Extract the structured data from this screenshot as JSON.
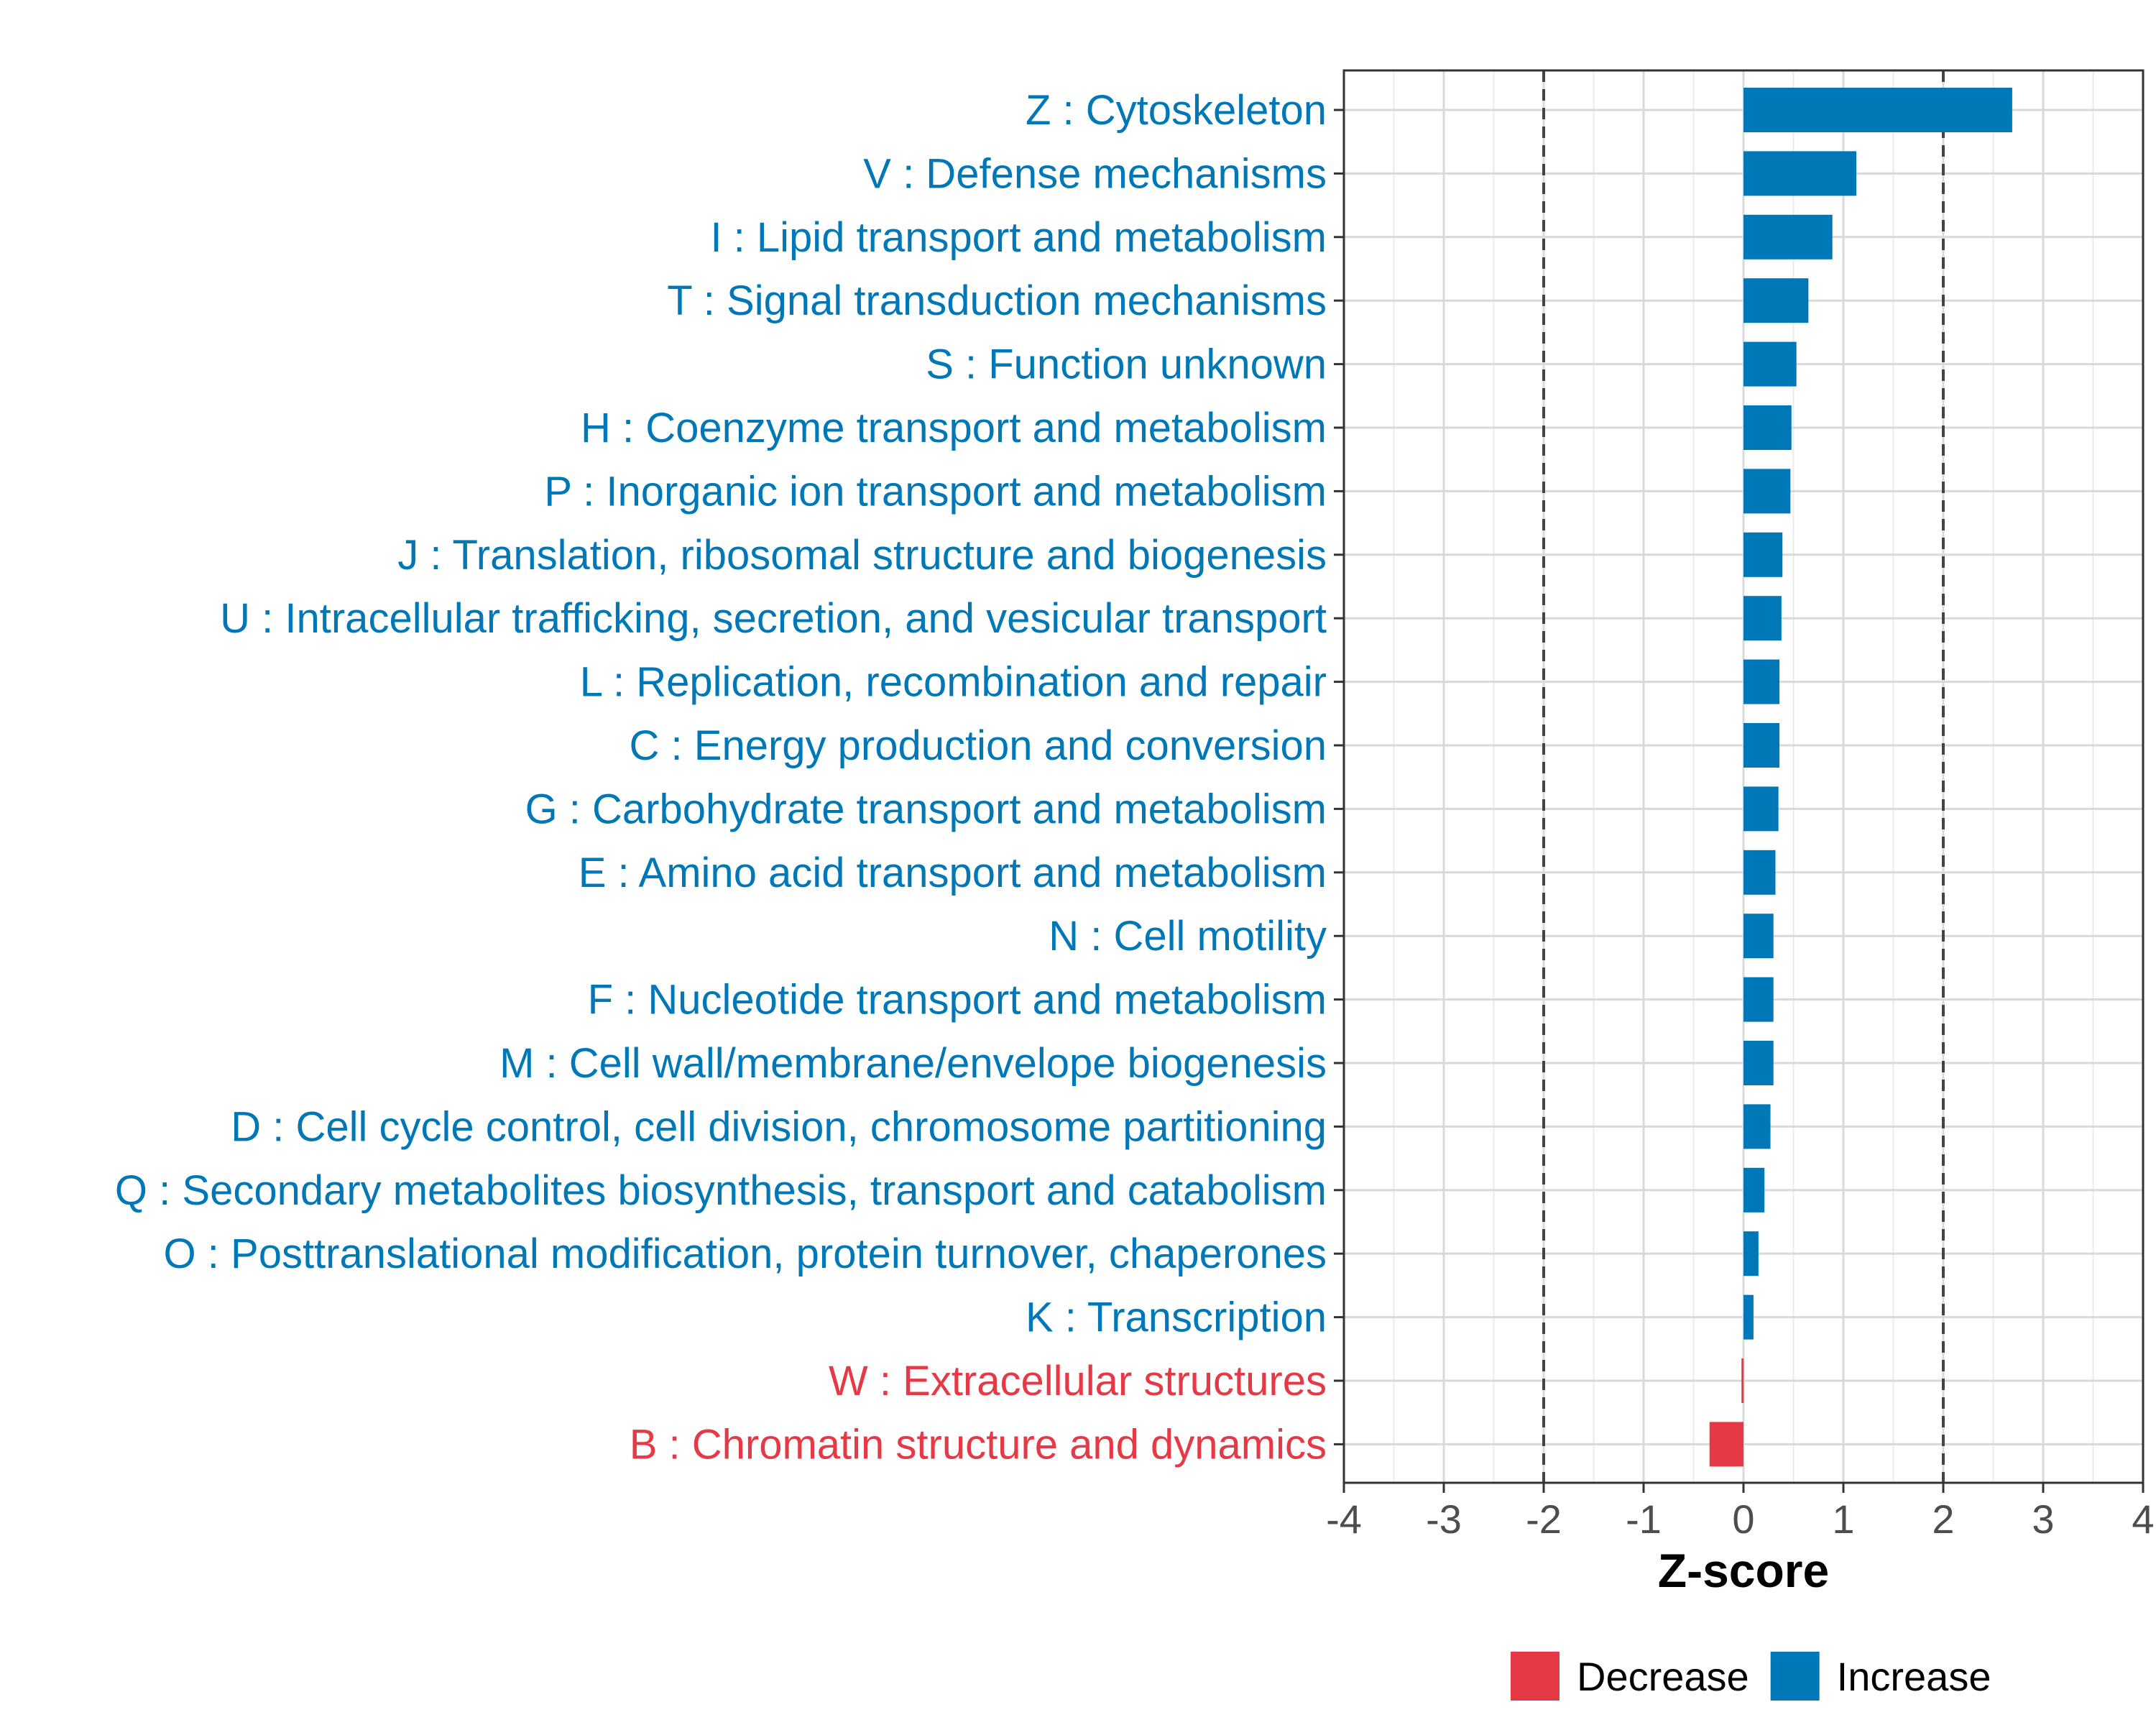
{
  "chart_data": {
    "type": "bar",
    "orientation": "horizontal",
    "xlabel": "Z-score",
    "xlim": [
      -4,
      4
    ],
    "xticks": [
      -4,
      -3,
      -2,
      -1,
      0,
      1,
      2,
      3,
      4
    ],
    "xtick_labels": [
      "-4",
      "-3",
      "-2",
      "-1",
      "0",
      "1",
      "2",
      "3",
      "4"
    ],
    "reference_lines": [
      -2,
      2
    ],
    "grid": true,
    "legend_position": "bottom",
    "legend": [
      {
        "name": "Decrease",
        "color": "#e63946"
      },
      {
        "name": "Increase",
        "color": "#0077b6"
      }
    ],
    "categories": [
      "Z : Cytoskeleton",
      "V : Defense mechanisms",
      "I : Lipid transport and metabolism",
      "T : Signal transduction mechanisms",
      "S : Function unknown",
      "H : Coenzyme transport and metabolism",
      "P : Inorganic ion transport and metabolism",
      "J : Translation, ribosomal structure and biogenesis",
      "U : Intracellular trafficking, secretion, and vesicular transport",
      "L : Replication, recombination and repair",
      "C : Energy production and conversion",
      "G : Carbohydrate transport and metabolism",
      "E : Amino acid transport and metabolism",
      "N : Cell motility",
      "F : Nucleotide transport and metabolism",
      "M : Cell wall/membrane/envelope biogenesis",
      "D : Cell cycle control, cell division, chromosome partitioning",
      "Q : Secondary metabolites biosynthesis, transport and catabolism",
      "O : Posttranslational modification, protein turnover, chaperones",
      "K : Transcription",
      "W : Extracellular structures",
      "B : Chromatin structure and dynamics"
    ],
    "values": [
      2.69,
      1.13,
      0.89,
      0.65,
      0.53,
      0.48,
      0.47,
      0.39,
      0.38,
      0.36,
      0.36,
      0.35,
      0.32,
      0.3,
      0.3,
      0.3,
      0.27,
      0.21,
      0.15,
      0.1,
      -0.02,
      -0.34
    ],
    "groups": [
      "Increase",
      "Increase",
      "Increase",
      "Increase",
      "Increase",
      "Increase",
      "Increase",
      "Increase",
      "Increase",
      "Increase",
      "Increase",
      "Increase",
      "Increase",
      "Increase",
      "Increase",
      "Increase",
      "Increase",
      "Increase",
      "Increase",
      "Increase",
      "Decrease",
      "Decrease"
    ]
  }
}
